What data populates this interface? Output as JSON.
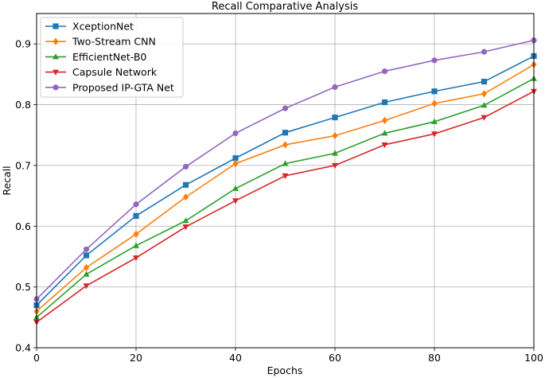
{
  "chart_data": {
    "type": "line",
    "title": "Recall Comparative Analysis",
    "xlabel": "Epochs",
    "ylabel": "Recall",
    "xlim": [
      0,
      100
    ],
    "ylim": [
      0.4,
      0.95
    ],
    "xticks": [
      0,
      20,
      40,
      60,
      80,
      100
    ],
    "yticks": [
      0.4,
      0.5,
      0.6,
      0.7,
      0.8,
      0.9
    ],
    "grid": true,
    "legend_position": "top-left",
    "x": [
      0,
      10,
      20,
      30,
      40,
      50,
      60,
      70,
      80,
      90,
      100
    ],
    "series": [
      {
        "name": "XceptionNet",
        "color": "#1f77b4",
        "marker": "square",
        "values": [
          0.47,
          0.552,
          0.617,
          0.668,
          0.712,
          0.754,
          0.779,
          0.804,
          0.822,
          0.838,
          0.88
        ]
      },
      {
        "name": "Two-Stream CNN",
        "color": "#ff7f0e",
        "marker": "diamond",
        "values": [
          0.46,
          0.532,
          0.587,
          0.648,
          0.703,
          0.734,
          0.749,
          0.774,
          0.802,
          0.818,
          0.866
        ]
      },
      {
        "name": "EfficientNet-B0",
        "color": "#2ca02c",
        "marker": "triangle-up",
        "values": [
          0.45,
          0.521,
          0.568,
          0.609,
          0.662,
          0.703,
          0.72,
          0.753,
          0.772,
          0.799,
          0.843
        ]
      },
      {
        "name": "Capsule Network",
        "color": "#d62728",
        "marker": "triangle-down",
        "values": [
          0.442,
          0.502,
          0.548,
          0.599,
          0.642,
          0.683,
          0.7,
          0.734,
          0.752,
          0.779,
          0.822
        ]
      },
      {
        "name": "Proposed IP-GTA Net",
        "color": "#9467bd",
        "marker": "circle",
        "values": [
          0.48,
          0.562,
          0.636,
          0.698,
          0.753,
          0.794,
          0.829,
          0.855,
          0.873,
          0.887,
          0.906
        ]
      }
    ]
  }
}
